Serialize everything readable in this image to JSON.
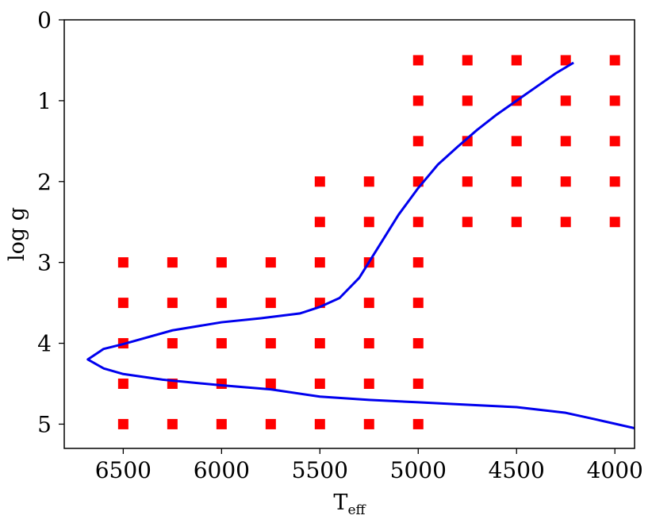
{
  "chart_data": {
    "type": "scatter",
    "title": "",
    "xlabel": "T",
    "xlabel_subscript": "eff",
    "ylabel": "log g",
    "xlim": [
      6800,
      3900
    ],
    "ylim": [
      5.3,
      0
    ],
    "x_ticks": [
      6500,
      6000,
      5500,
      5000,
      4500,
      4000
    ],
    "x_tick_labels": [
      "6500",
      "6000",
      "5500",
      "5000",
      "4500",
      "4000"
    ],
    "y_ticks": [
      0,
      1,
      2,
      3,
      4,
      5
    ],
    "y_tick_labels": [
      "0",
      "1",
      "2",
      "3",
      "4",
      "5"
    ],
    "y_inverted": true,
    "x_inverted": true,
    "grid": false,
    "series": [
      {
        "kind": "markers",
        "marker": "square",
        "color": "#ff0000",
        "points": [
          [
            5000,
            0.5
          ],
          [
            4750,
            0.5
          ],
          [
            4500,
            0.5
          ],
          [
            4250,
            0.5
          ],
          [
            4000,
            0.5
          ],
          [
            5000,
            1.0
          ],
          [
            4750,
            1.0
          ],
          [
            4500,
            1.0
          ],
          [
            4250,
            1.0
          ],
          [
            4000,
            1.0
          ],
          [
            5000,
            1.5
          ],
          [
            4750,
            1.5
          ],
          [
            4500,
            1.5
          ],
          [
            4250,
            1.5
          ],
          [
            4000,
            1.5
          ],
          [
            5500,
            2.0
          ],
          [
            5250,
            2.0
          ],
          [
            5000,
            2.0
          ],
          [
            4750,
            2.0
          ],
          [
            4500,
            2.0
          ],
          [
            4250,
            2.0
          ],
          [
            4000,
            2.0
          ],
          [
            5500,
            2.5
          ],
          [
            5250,
            2.5
          ],
          [
            5000,
            2.5
          ],
          [
            4750,
            2.5
          ],
          [
            4500,
            2.5
          ],
          [
            4250,
            2.5
          ],
          [
            4000,
            2.5
          ],
          [
            6500,
            3.0
          ],
          [
            6250,
            3.0
          ],
          [
            6000,
            3.0
          ],
          [
            5750,
            3.0
          ],
          [
            5500,
            3.0
          ],
          [
            5250,
            3.0
          ],
          [
            5000,
            3.0
          ],
          [
            6500,
            3.5
          ],
          [
            6250,
            3.5
          ],
          [
            6000,
            3.5
          ],
          [
            5750,
            3.5
          ],
          [
            5500,
            3.5
          ],
          [
            5250,
            3.5
          ],
          [
            5000,
            3.5
          ],
          [
            6500,
            4.0
          ],
          [
            6250,
            4.0
          ],
          [
            6000,
            4.0
          ],
          [
            5750,
            4.0
          ],
          [
            5500,
            4.0
          ],
          [
            5250,
            4.0
          ],
          [
            5000,
            4.0
          ],
          [
            6500,
            4.5
          ],
          [
            6250,
            4.5
          ],
          [
            6000,
            4.5
          ],
          [
            5750,
            4.5
          ],
          [
            5500,
            4.5
          ],
          [
            5250,
            4.5
          ],
          [
            5000,
            4.5
          ],
          [
            6500,
            5.0
          ],
          [
            6250,
            5.0
          ],
          [
            6000,
            5.0
          ],
          [
            5750,
            5.0
          ],
          [
            5500,
            5.0
          ],
          [
            5250,
            5.0
          ],
          [
            5000,
            5.0
          ]
        ]
      },
      {
        "kind": "line",
        "color": "#0000ee",
        "points": [
          [
            4210,
            0.53
          ],
          [
            4300,
            0.66
          ],
          [
            4400,
            0.83
          ],
          [
            4500,
            1.0
          ],
          [
            4600,
            1.17
          ],
          [
            4700,
            1.36
          ],
          [
            4800,
            1.57
          ],
          [
            4900,
            1.79
          ],
          [
            5000,
            2.08
          ],
          [
            5100,
            2.41
          ],
          [
            5200,
            2.8
          ],
          [
            5300,
            3.19
          ],
          [
            5400,
            3.44
          ],
          [
            5500,
            3.55
          ],
          [
            5600,
            3.63
          ],
          [
            5800,
            3.69
          ],
          [
            6000,
            3.74
          ],
          [
            6250,
            3.84
          ],
          [
            6500,
            4.01
          ],
          [
            6600,
            4.07
          ],
          [
            6680,
            4.2
          ],
          [
            6600,
            4.31
          ],
          [
            6500,
            4.38
          ],
          [
            6300,
            4.45
          ],
          [
            6000,
            4.52
          ],
          [
            5750,
            4.57
          ],
          [
            5500,
            4.66
          ],
          [
            5250,
            4.7
          ],
          [
            5000,
            4.73
          ],
          [
            4750,
            4.76
          ],
          [
            4500,
            4.79
          ],
          [
            4250,
            4.86
          ],
          [
            4100,
            4.94
          ],
          [
            3900,
            5.05
          ]
        ]
      }
    ]
  }
}
